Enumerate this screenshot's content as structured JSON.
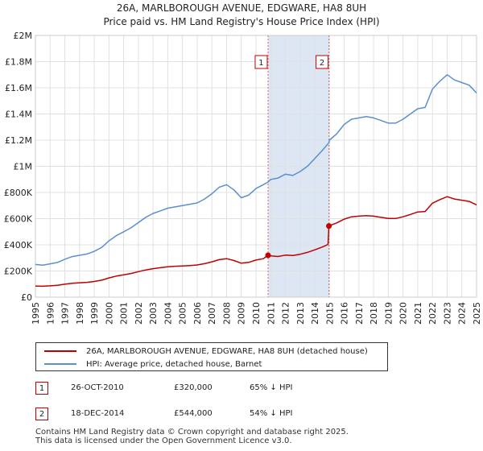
{
  "title": {
    "line1": "26A, MARLBOROUGH AVENUE, EDGWARE, HA8 8UH",
    "line2": "Price paid vs. HM Land Registry's House Price Index (HPI)"
  },
  "colors": {
    "property": "#c00000",
    "hpi": "#5b8fd0",
    "shade": "#dde6f3",
    "grid": "#e0e0e0",
    "marker_line": "#e06666"
  },
  "legend": {
    "property_label": "26A, MARLBOROUGH AVENUE, EDGWARE, HA8 8UH (detached house)",
    "hpi_label": "HPI: Average price, detached house, Barnet"
  },
  "sales": [
    {
      "num": "1",
      "date": "26-OCT-2010",
      "price": "£320,000",
      "hpi": "65% ↓ HPI"
    },
    {
      "num": "2",
      "date": "18-DEC-2014",
      "price": "£544,000",
      "hpi": "54% ↓ HPI"
    }
  ],
  "footer": {
    "line1": "Contains HM Land Registry data © Crown copyright and database right 2025.",
    "line2": "This data is licensed under the Open Government Licence v3.0."
  },
  "chart_data": {
    "type": "line",
    "title": "26A, MARLBOROUGH AVENUE, EDGWARE, HA8 8UH — Price paid vs. HM Land Registry's House Price Index (HPI)",
    "xlabel": "",
    "ylabel": "",
    "xlim": [
      1995.0,
      2025.0
    ],
    "ylim": [
      0,
      2000000
    ],
    "yticks": [
      0,
      200000,
      400000,
      600000,
      800000,
      1000000,
      1200000,
      1400000,
      1600000,
      1800000,
      2000000
    ],
    "ytick_labels": [
      "£0",
      "£200K",
      "£400K",
      "£600K",
      "£800K",
      "£1M",
      "£1.2M",
      "£1.4M",
      "£1.6M",
      "£1.8M",
      "£2M"
    ],
    "xticks": [
      "1995",
      "1996",
      "1997",
      "1998",
      "1999",
      "2000",
      "2001",
      "2002",
      "2003",
      "2004",
      "2005",
      "2006",
      "2007",
      "2008",
      "2009",
      "2010",
      "2011",
      "2012",
      "2013",
      "2014",
      "2015",
      "2016",
      "2017",
      "2018",
      "2019",
      "2020",
      "2021",
      "2022",
      "2023",
      "2024",
      "2025"
    ],
    "grid": true,
    "legend_position": "bottom",
    "shaded_span": [
      2010.82,
      2014.96
    ],
    "annotations": [
      {
        "label": "1",
        "x": 2010.82,
        "y": 320000
      },
      {
        "label": "2",
        "x": 2014.96,
        "y": 544000
      }
    ],
    "series": [
      {
        "name": "HPI: Average price, detached house, Barnet",
        "color": "#5b8fd0",
        "x": [
          1995.0,
          1995.5,
          1996.0,
          1996.5,
          1997.0,
          1997.5,
          1998.0,
          1998.5,
          1999.0,
          1999.5,
          2000.0,
          2000.5,
          2001.0,
          2001.5,
          2002.0,
          2002.5,
          2003.0,
          2003.5,
          2004.0,
          2004.5,
          2005.0,
          2005.5,
          2006.0,
          2006.5,
          2007.0,
          2007.5,
          2008.0,
          2008.5,
          2009.0,
          2009.5,
          2010.0,
          2010.5,
          2010.82,
          2011.0,
          2011.5,
          2012.0,
          2012.5,
          2013.0,
          2013.5,
          2014.0,
          2014.5,
          2014.96,
          2015.0,
          2015.5,
          2016.0,
          2016.5,
          2017.0,
          2017.5,
          2018.0,
          2018.5,
          2019.0,
          2019.5,
          2020.0,
          2020.5,
          2021.0,
          2021.5,
          2022.0,
          2022.5,
          2023.0,
          2023.5,
          2024.0,
          2024.5,
          2025.0
        ],
        "values": [
          250000,
          245000,
          255000,
          265000,
          290000,
          310000,
          320000,
          330000,
          350000,
          380000,
          430000,
          470000,
          500000,
          530000,
          570000,
          610000,
          640000,
          660000,
          680000,
          690000,
          700000,
          710000,
          720000,
          750000,
          790000,
          840000,
          860000,
          820000,
          760000,
          780000,
          830000,
          860000,
          880000,
          900000,
          910000,
          940000,
          930000,
          960000,
          1000000,
          1060000,
          1120000,
          1180000,
          1200000,
          1250000,
          1320000,
          1360000,
          1370000,
          1380000,
          1370000,
          1350000,
          1330000,
          1330000,
          1360000,
          1400000,
          1440000,
          1450000,
          1590000,
          1650000,
          1700000,
          1660000,
          1640000,
          1620000,
          1560000
        ]
      },
      {
        "name": "26A, MARLBOROUGH AVENUE, EDGWARE, HA8 8UH (detached house)",
        "color": "#c00000",
        "x": [
          1995.0,
          1995.5,
          1996.0,
          1996.5,
          1997.0,
          1997.5,
          1998.0,
          1998.5,
          1999.0,
          1999.5,
          2000.0,
          2000.5,
          2001.0,
          2001.5,
          2002.0,
          2002.5,
          2003.0,
          2003.5,
          2004.0,
          2004.5,
          2005.0,
          2005.5,
          2006.0,
          2006.5,
          2007.0,
          2007.5,
          2008.0,
          2008.5,
          2009.0,
          2009.5,
          2010.0,
          2010.5,
          2010.82,
          2011.0,
          2011.5,
          2012.0,
          2012.5,
          2013.0,
          2013.5,
          2014.0,
          2014.5,
          2014.9,
          2014.96,
          2015.0,
          2015.5,
          2016.0,
          2016.5,
          2017.0,
          2017.5,
          2018.0,
          2018.5,
          2019.0,
          2019.5,
          2020.0,
          2020.5,
          2021.0,
          2021.5,
          2022.0,
          2022.5,
          2023.0,
          2023.5,
          2024.0,
          2024.5,
          2025.0
        ],
        "values": [
          85000,
          84000,
          87000,
          91000,
          99000,
          106000,
          110000,
          113000,
          120000,
          130000,
          147000,
          161000,
          171000,
          181000,
          195000,
          208000,
          218000,
          225000,
          232000,
          236000,
          239000,
          242000,
          246000,
          256000,
          270000,
          287000,
          294000,
          280000,
          260000,
          266000,
          284000,
          294000,
          320000,
          315000,
          311000,
          321000,
          318000,
          328000,
          342000,
          362000,
          383000,
          403000,
          544000,
          546000,
          568000,
          596000,
          614000,
          619000,
          623000,
          619000,
          610000,
          601000,
          601000,
          614000,
          632000,
          651000,
          655000,
          718000,
          745000,
          768000,
          750000,
          741000,
          732000,
          705000
        ]
      }
    ]
  }
}
